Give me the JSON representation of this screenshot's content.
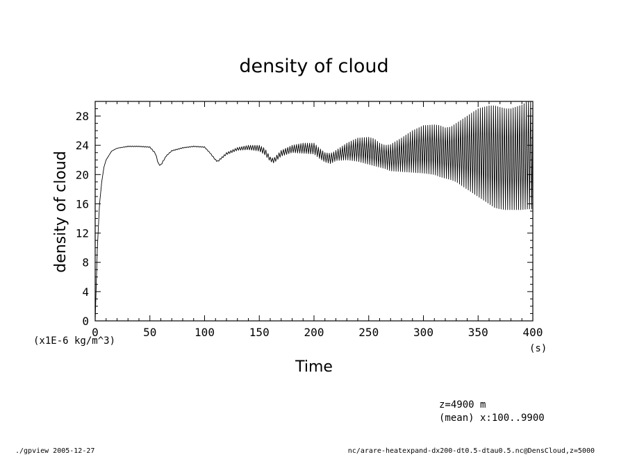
{
  "footer": {
    "left": "./gpview  2005-12-27",
    "right": "nc/arare-heatexpand-dx200-dt0.5-dtau0.5.nc@DensCloud,z=5000"
  },
  "annotation": {
    "line1": "z=4900  m",
    "line2": "(mean) x:100..9900"
  },
  "chart_data": {
    "type": "line",
    "title": "density of cloud",
    "xlabel": "Time",
    "ylabel": "density of cloud",
    "x_unit": "(s)",
    "y_unit": "(x1E-6 kg/m^3)",
    "xlim": [
      0,
      400
    ],
    "ylim": [
      0,
      30
    ],
    "x_ticks": [
      0,
      50,
      100,
      150,
      200,
      250,
      300,
      350,
      400
    ],
    "y_ticks": [
      0,
      4,
      8,
      12,
      16,
      20,
      24,
      28
    ],
    "grid": false,
    "legend": "none",
    "oscillation_period_s": 2,
    "series": [
      {
        "x": [
          0,
          2,
          4,
          6,
          8,
          10,
          15,
          20,
          30,
          40,
          50,
          55,
          58,
          60,
          65,
          70,
          80,
          90,
          100,
          105,
          110,
          112,
          115,
          120,
          130,
          140,
          150,
          155,
          160,
          163,
          165,
          170,
          180,
          190,
          200,
          205,
          210,
          215,
          218,
          220,
          230,
          240,
          250,
          255,
          260,
          265,
          270,
          280,
          290,
          300,
          310,
          315,
          320,
          325,
          330,
          340,
          350,
          360,
          365,
          370,
          375,
          380,
          390,
          395,
          400
        ],
        "upper": [
          0,
          10,
          16,
          19,
          21,
          22,
          23.2,
          23.6,
          23.9,
          23.9,
          23.8,
          23,
          21.5,
          21.4,
          22.6,
          23.3,
          23.7,
          23.9,
          23.8,
          23,
          22.1,
          21.9,
          22.3,
          23,
          23.7,
          24,
          24,
          23.6,
          22.4,
          22.2,
          22.5,
          23.3,
          24,
          24.3,
          24.3,
          23.6,
          23,
          22.9,
          23.1,
          23.3,
          24.3,
          25,
          25.1,
          24.9,
          24.3,
          24,
          24.1,
          25,
          26,
          26.7,
          26.8,
          26.7,
          26.4,
          26.5,
          27,
          28,
          29,
          29.4,
          29.4,
          29.2,
          29,
          29,
          29.5,
          30,
          30
        ],
        "lower": [
          0,
          10,
          16,
          19,
          21,
          22,
          23.2,
          23.6,
          23.8,
          23.8,
          23.7,
          22.8,
          21.3,
          21.2,
          22.5,
          23.2,
          23.6,
          23.8,
          23.7,
          22.9,
          21.9,
          21.7,
          22.1,
          22.7,
          23.3,
          23.4,
          23.2,
          22.7,
          21.8,
          21.6,
          21.8,
          22.5,
          23,
          22.9,
          22.8,
          22.2,
          21.7,
          21.5,
          21.7,
          21.9,
          22,
          21.8,
          21.4,
          21.2,
          21,
          20.8,
          20.5,
          20.4,
          20.3,
          20.2,
          20,
          19.7,
          19.5,
          19.3,
          19,
          18,
          17,
          16,
          15.5,
          15.3,
          15.2,
          15.2,
          15.2,
          15.3,
          15.3
        ]
      }
    ]
  }
}
